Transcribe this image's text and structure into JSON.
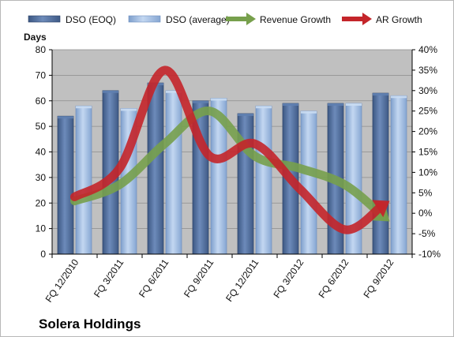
{
  "chart_data": {
    "type": "bar",
    "company": "Solera Holdings",
    "ylabel": "Days",
    "categories": [
      "FQ 12/2010",
      "FQ 3/2011",
      "FQ 6/2011",
      "FQ 9/2011",
      "FQ 12/2011",
      "FQ 3/2012",
      "FQ 6/2012",
      "FQ 9/2012"
    ],
    "ylim": [
      0,
      80
    ],
    "y_ticks": [
      0,
      10,
      20,
      30,
      40,
      50,
      60,
      70,
      80
    ],
    "y2lim": [
      -10,
      40
    ],
    "y2_ticks": [
      "-10%",
      "-5%",
      "0%",
      "5%",
      "10%",
      "15%",
      "20%",
      "25%",
      "30%",
      "35%",
      "40%"
    ],
    "series": [
      {
        "name": "DSO (EOQ)",
        "kind": "bar",
        "axis": "left",
        "color": "#4f6d99",
        "values": [
          54,
          64,
          67,
          60,
          55,
          59,
          59,
          63
        ]
      },
      {
        "name": "DSO (average)",
        "kind": "bar",
        "axis": "left",
        "color": "#9fbbe4",
        "values": [
          58,
          57,
          64,
          61,
          58,
          56,
          59,
          62
        ]
      },
      {
        "name": "Revenue Growth",
        "kind": "line",
        "axis": "right",
        "unit": "%",
        "color": "#77a04c",
        "values": [
          3,
          7,
          17,
          25,
          14,
          11,
          7,
          -2
        ]
      },
      {
        "name": "AR Growth",
        "kind": "line",
        "axis": "right",
        "unit": "%",
        "color": "#c4252a",
        "values": [
          4,
          11,
          35,
          14,
          17,
          6,
          -4,
          3
        ]
      }
    ],
    "legend_position": "top",
    "grid": true,
    "background_color": "#c0c0c0"
  }
}
